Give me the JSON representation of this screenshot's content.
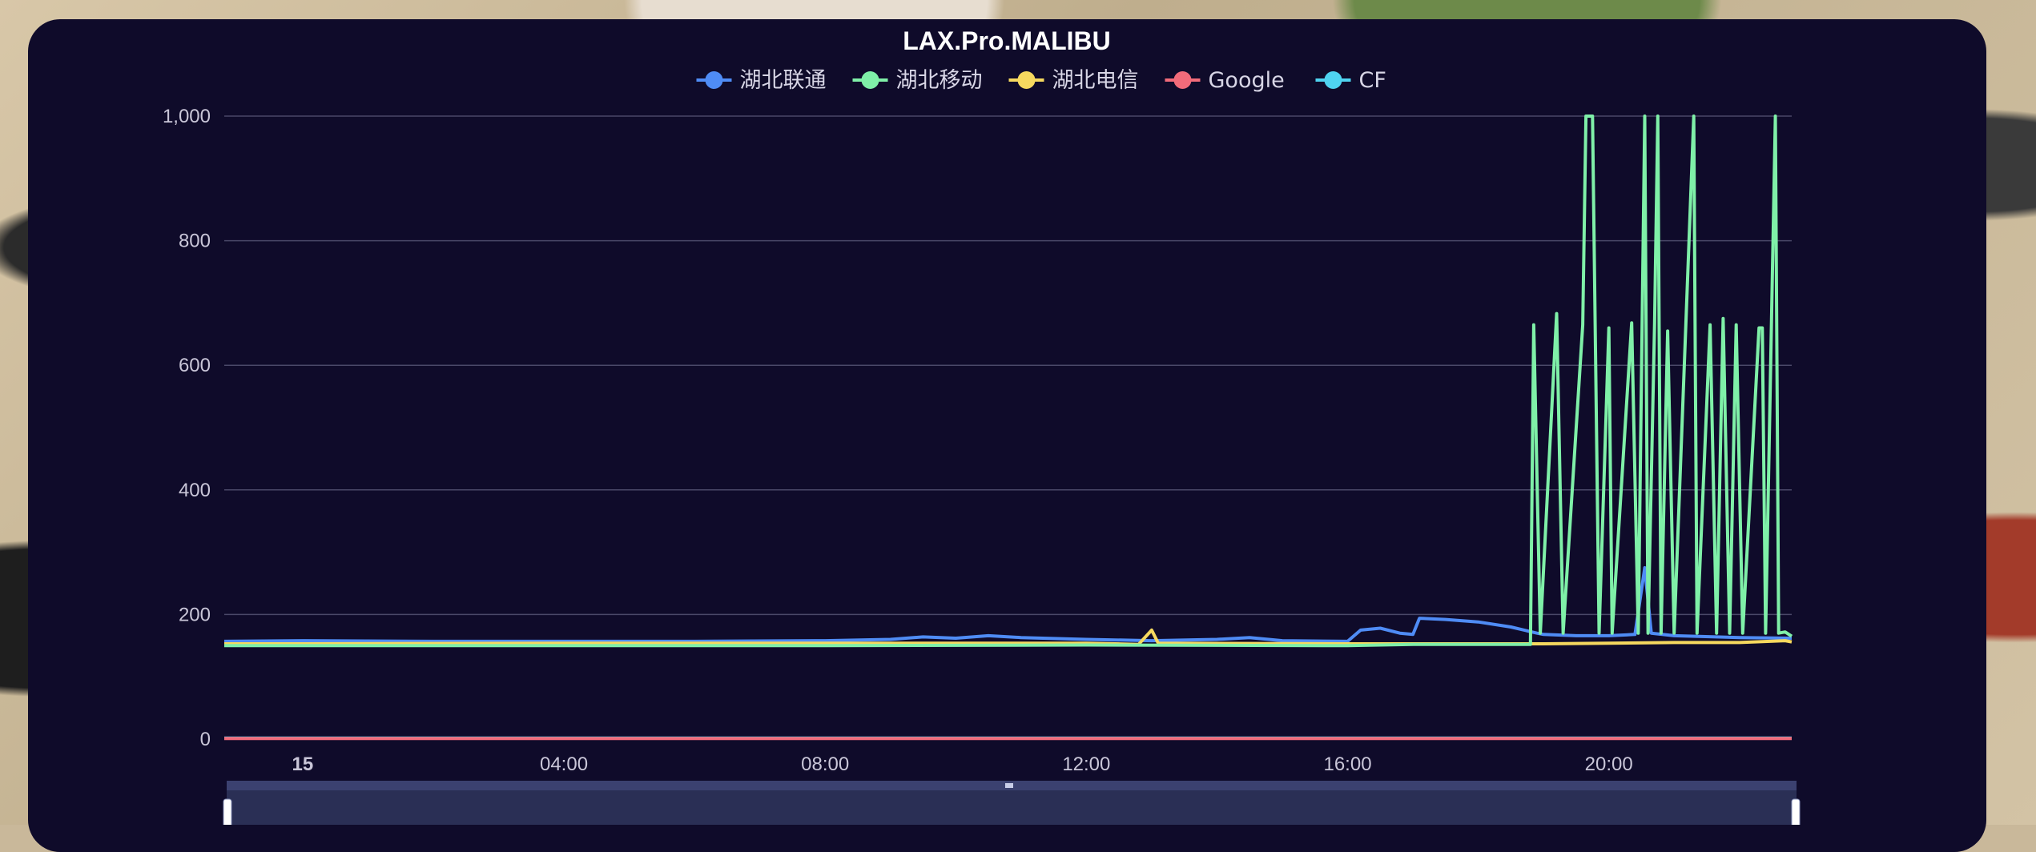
{
  "chart_data": {
    "type": "line",
    "title": "LAX.Pro.MALIBU",
    "legend_position": "top-center",
    "grid": true,
    "ylim": [
      0,
      1000
    ],
    "y_ticks": [
      "0",
      "200",
      "400",
      "600",
      "800",
      "1,000"
    ],
    "x_ticks": [
      "15",
      "04:00",
      "08:00",
      "12:00",
      "16:00",
      "20:00"
    ],
    "x_range_hours": [
      -1.2,
      22.8
    ],
    "series": [
      {
        "name": "湖北联通",
        "color": "#4f8cf5",
        "points": [
          [
            -1.2,
            157
          ],
          [
            0,
            158
          ],
          [
            2,
            157
          ],
          [
            4,
            157
          ],
          [
            6,
            157
          ],
          [
            8,
            158
          ],
          [
            9,
            160
          ],
          [
            9.5,
            164
          ],
          [
            10,
            162
          ],
          [
            10.5,
            166
          ],
          [
            11,
            163
          ],
          [
            12,
            160
          ],
          [
            13,
            158
          ],
          [
            14,
            160
          ],
          [
            14.5,
            163
          ],
          [
            15,
            158
          ],
          [
            16,
            157
          ],
          [
            16.2,
            175
          ],
          [
            16.5,
            178
          ],
          [
            16.8,
            170
          ],
          [
            17.0,
            168
          ],
          [
            17.1,
            194
          ],
          [
            17.5,
            192
          ],
          [
            18,
            188
          ],
          [
            18.5,
            180
          ],
          [
            18.9,
            170
          ],
          [
            19,
            168
          ],
          [
            19.5,
            166
          ],
          [
            20,
            166
          ],
          [
            20.4,
            168
          ],
          [
            20.55,
            275
          ],
          [
            20.65,
            170
          ],
          [
            21,
            166
          ],
          [
            22,
            163
          ],
          [
            22.8,
            162
          ]
        ]
      },
      {
        "name": "湖北移动",
        "color": "#7ff0a8",
        "points": [
          [
            -1.2,
            150
          ],
          [
            0,
            150
          ],
          [
            4,
            150
          ],
          [
            8,
            150
          ],
          [
            12,
            151
          ],
          [
            16,
            150
          ],
          [
            17,
            152
          ],
          [
            18.8,
            152
          ],
          [
            18.85,
            665
          ],
          [
            18.95,
            170
          ],
          [
            19.2,
            683
          ],
          [
            19.3,
            170
          ],
          [
            19.6,
            665
          ],
          [
            19.65,
            1000
          ],
          [
            19.75,
            1000
          ],
          [
            19.85,
            170
          ],
          [
            20.0,
            660
          ],
          [
            20.05,
            170
          ],
          [
            20.35,
            668
          ],
          [
            20.45,
            170
          ],
          [
            20.55,
            1000
          ],
          [
            20.6,
            170
          ],
          [
            20.7,
            668
          ],
          [
            20.75,
            1000
          ],
          [
            20.8,
            170
          ],
          [
            20.9,
            655
          ],
          [
            21.0,
            170
          ],
          [
            21.3,
            1000
          ],
          [
            21.35,
            170
          ],
          [
            21.55,
            665
          ],
          [
            21.65,
            170
          ],
          [
            21.75,
            675
          ],
          [
            21.85,
            170
          ],
          [
            21.95,
            665
          ],
          [
            22.05,
            170
          ],
          [
            22.3,
            660
          ],
          [
            22.35,
            660
          ],
          [
            22.4,
            170
          ],
          [
            22.55,
            1000
          ],
          [
            22.6,
            170
          ],
          [
            22.7,
            172
          ],
          [
            22.8,
            165
          ]
        ]
      },
      {
        "name": "湖北电信",
        "color": "#f6d95f",
        "points": [
          [
            -1.2,
            153
          ],
          [
            0,
            153
          ],
          [
            4,
            154
          ],
          [
            8,
            154
          ],
          [
            12,
            154
          ],
          [
            12.8,
            152
          ],
          [
            13.0,
            175
          ],
          [
            13.1,
            154
          ],
          [
            16,
            153
          ],
          [
            17,
            153
          ],
          [
            18,
            153
          ],
          [
            19,
            153
          ],
          [
            20,
            154
          ],
          [
            21,
            155
          ],
          [
            22,
            155
          ],
          [
            22.7,
            158
          ],
          [
            22.8,
            156
          ]
        ]
      },
      {
        "name": "Google",
        "color": "#f26b7a",
        "points": [
          [
            -1.2,
            1
          ],
          [
            22.8,
            1
          ]
        ]
      },
      {
        "name": "CF",
        "color": "#4fd3f0",
        "points": [
          [
            -1.2,
            1.5
          ],
          [
            22.8,
            1.5
          ]
        ]
      }
    ]
  }
}
